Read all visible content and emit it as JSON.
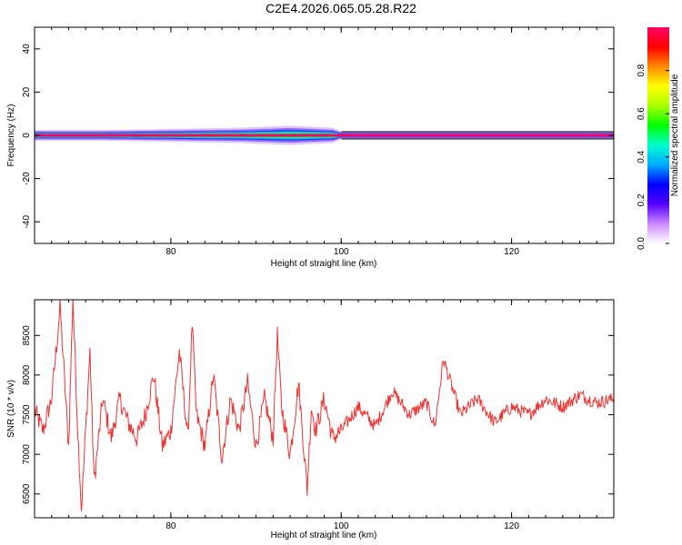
{
  "title": "C2E4.2026.065.05.28.R22",
  "chart_data": [
    {
      "type": "heatmap",
      "xlabel": "Height of straight line (km)",
      "ylabel": "Frequency (Hz)",
      "xlim": [
        64,
        132
      ],
      "ylim": [
        -50,
        50
      ],
      "x_ticks": [
        80,
        100,
        120
      ],
      "y_ticks": [
        40,
        20,
        0,
        -20,
        -40
      ],
      "grid": false,
      "colorbar": {
        "label": "Normalized spectral amplitude",
        "range": [
          0.0,
          1.0
        ],
        "ticks": [
          0.0,
          0.2,
          0.4,
          0.6,
          0.8
        ],
        "tick_labels": [
          "0.0",
          "0.2",
          "0.4",
          "0.6",
          "0.8"
        ],
        "colors": [
          "#ffffff",
          "#cc88ff",
          "#5500ff",
          "#0000ff",
          "#00aaff",
          "#00ffcc",
          "#00ff00",
          "#aaff00",
          "#ffff00",
          "#ff8800",
          "#ff0000",
          "#ff0066"
        ]
      },
      "energy_band": {
        "center_hz": 0,
        "envelope": [
          {
            "x": 64,
            "half_width_hz": 2.5
          },
          {
            "x": 72,
            "half_width_hz": 2.5
          },
          {
            "x": 80,
            "half_width_hz": 3
          },
          {
            "x": 88,
            "half_width_hz": 3.5
          },
          {
            "x": 94,
            "half_width_hz": 4.5
          },
          {
            "x": 99,
            "half_width_hz": 3.5
          },
          {
            "x": 100,
            "half_width_hz": 1.8
          },
          {
            "x": 132,
            "half_width_hz": 1.8
          }
        ],
        "dominant_color": "#ff0066",
        "secondary_color": "#00ff66"
      }
    },
    {
      "type": "line",
      "xlabel": "Height of straight line (km)",
      "ylabel": "SNR (10 * v/v)",
      "xlim": [
        64,
        132
      ],
      "ylim": [
        6200,
        8950
      ],
      "x_ticks": [
        80,
        100,
        120
      ],
      "y_ticks": [
        6500,
        7000,
        7500,
        8000,
        8500
      ],
      "grid": false,
      "line_color": "#ee3333",
      "series": [
        {
          "x": [
            64,
            65,
            66,
            67,
            68,
            68.5,
            69,
            69.5,
            70,
            70.5,
            71,
            72,
            73,
            74,
            75,
            76,
            77,
            78,
            79,
            80,
            81,
            82,
            82.5,
            83,
            84,
            85,
            86,
            87,
            88,
            89,
            90,
            91,
            92,
            92.5,
            93,
            94,
            95,
            96,
            96.5,
            97,
            98,
            99,
            100,
            102,
            104,
            106,
            108,
            110,
            111,
            112,
            114,
            116,
            118,
            120,
            122,
            124,
            126,
            128,
            130,
            132
          ],
          "y": [
            7550,
            7300,
            7700,
            8850,
            7100,
            9000,
            7500,
            6300,
            7300,
            8300,
            6650,
            7700,
            7200,
            7700,
            7400,
            7200,
            7500,
            8000,
            7100,
            7300,
            8300,
            7200,
            8650,
            7500,
            7100,
            8000,
            6950,
            7700,
            7300,
            7900,
            7100,
            7700,
            7200,
            8500,
            7600,
            7000,
            7900,
            6550,
            7600,
            7300,
            7700,
            7200,
            7300,
            7600,
            7350,
            7800,
            7500,
            7650,
            7350,
            8200,
            7500,
            7700,
            7400,
            7600,
            7500,
            7700,
            7600,
            7750,
            7650,
            7700
          ]
        }
      ]
    }
  ]
}
